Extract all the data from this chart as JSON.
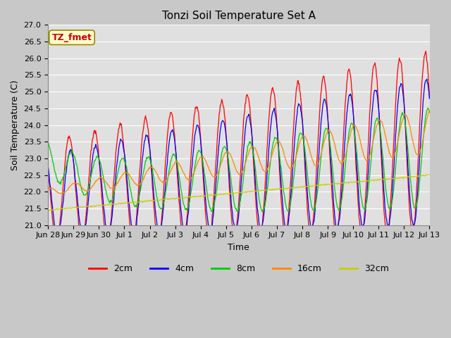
{
  "title": "Tonzi Soil Temperature Set A",
  "xlabel": "Time",
  "ylabel": "Soil Temperature (C)",
  "ylim": [
    21.0,
    27.0
  ],
  "yticks": [
    21.0,
    21.5,
    22.0,
    22.5,
    23.0,
    23.5,
    24.0,
    24.5,
    25.0,
    25.5,
    26.0,
    26.5,
    27.0
  ],
  "annotation_text": "TZ_fmet",
  "annotation_bg": "#ffffcc",
  "annotation_fg": "#cc0000",
  "line_colors": {
    "2cm": "#ff0000",
    "4cm": "#0000ff",
    "8cm": "#00cc00",
    "16cm": "#ff8800",
    "32cm": "#cccc00"
  },
  "legend_labels": [
    "2cm",
    "4cm",
    "8cm",
    "16cm",
    "32cm"
  ],
  "fig_bg_color": "#c8c8c8",
  "plot_bg_color": "#e0e0e0",
  "grid_color": "#ffffff",
  "title_fontsize": 11,
  "label_fontsize": 9,
  "tick_fontsize": 8
}
